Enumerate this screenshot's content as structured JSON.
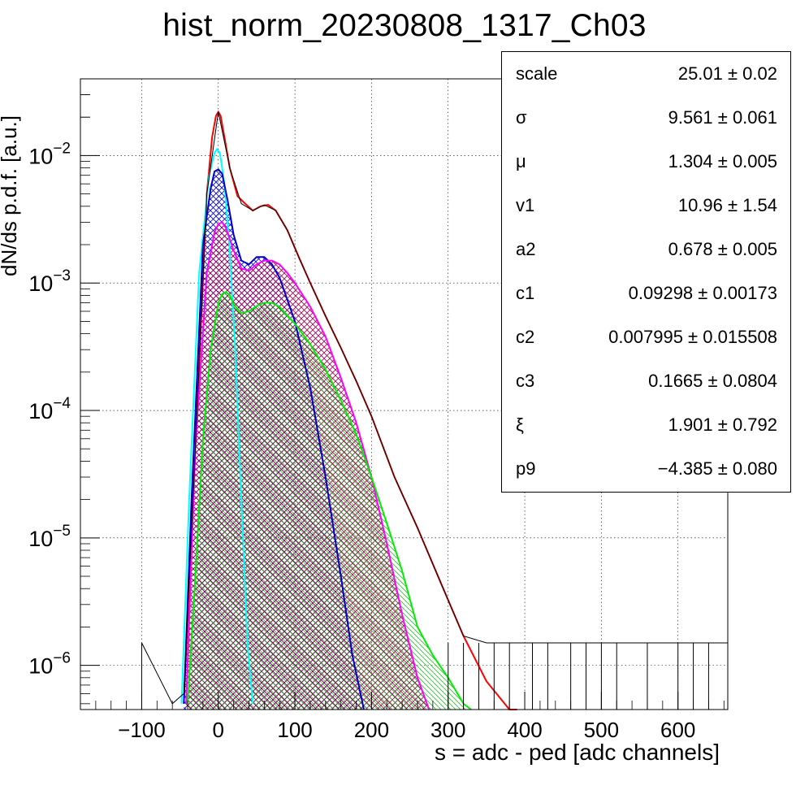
{
  "chart_data": {
    "type": "line",
    "title": "hist_norm_20230808_1317_Ch03",
    "xlabel": "s = adc - ped [adc channels]",
    "ylabel": "dN/ds p.d.f. [a.u.]",
    "xlim": [
      -180,
      665
    ],
    "ylim": [
      4.5e-07,
      0.04
    ],
    "yscale": "log",
    "grid": true,
    "legend": "none",
    "x_ticks": [
      "−100",
      "0",
      "100",
      "200",
      "300",
      "400",
      "500",
      "600"
    ],
    "x_tick_values": [
      -100,
      0,
      100,
      200,
      300,
      400,
      500,
      600
    ],
    "y_ticks": [
      {
        "base": "10",
        "exp": "−2",
        "value": 0.01
      },
      {
        "base": "10",
        "exp": "−3",
        "value": 0.001
      },
      {
        "base": "10",
        "exp": "−4",
        "value": 0.0001
      },
      {
        "base": "10",
        "exp": "−5",
        "value": 1e-05
      },
      {
        "base": "10",
        "exp": "−6",
        "value": 1e-06
      }
    ],
    "series": [
      {
        "color": "#ff0000",
        "fill": "none",
        "x": [
          -45,
          -30,
          -15,
          -8,
          -3,
          0,
          3,
          8,
          15,
          25,
          35,
          45,
          55,
          65,
          75,
          90,
          105,
          120,
          140,
          160,
          180,
          200,
          230,
          260,
          290,
          320,
          350,
          380,
          390
        ],
        "y": [
          5e-07,
          5e-05,
          0.005,
          0.014,
          0.0205,
          0.022,
          0.0205,
          0.014,
          0.008,
          0.0048,
          0.0042,
          0.0037,
          0.004,
          0.0041,
          0.0037,
          0.0026,
          0.0016,
          0.001,
          0.00055,
          0.00031,
          0.00017,
          9e-05,
          3e-05,
          1.2e-05,
          4.5e-06,
          1.7e-06,
          7.5e-07,
          4.5e-07,
          4e-07
        ]
      },
      {
        "color": "#00ffff",
        "fill": "none",
        "x": [
          -48,
          -38,
          -25,
          -12,
          -5,
          -2,
          2,
          8,
          15,
          22,
          30,
          38,
          45
        ],
        "y": [
          5e-07,
          2e-05,
          0.0012,
          0.007,
          0.0105,
          0.0112,
          0.0105,
          0.006,
          0.0018,
          0.0003,
          2e-05,
          1.5e-06,
          5e-07
        ]
      },
      {
        "color": "#0000cc",
        "fill": "#0000cc",
        "x": [
          -45,
          -35,
          -20,
          -10,
          -5,
          0,
          5,
          12,
          20,
          30,
          40,
          50,
          60,
          70,
          80,
          100,
          120,
          140,
          160,
          175,
          190
        ],
        "y": [
          5e-07,
          2e-05,
          0.002,
          0.0055,
          0.0075,
          0.0078,
          0.0072,
          0.0045,
          0.0024,
          0.0015,
          0.0014,
          0.0016,
          0.0016,
          0.0014,
          0.0011,
          0.0005,
          0.00015,
          3e-05,
          5e-06,
          1.2e-06,
          4e-07
        ]
      },
      {
        "color": "#ff00ff",
        "fill": "#9a0050",
        "x": [
          -42,
          -30,
          -15,
          -5,
          0,
          5,
          10,
          20,
          30,
          40,
          50,
          60,
          70,
          80,
          90,
          100,
          120,
          140,
          160,
          180,
          200,
          220,
          240,
          260,
          275
        ],
        "y": [
          5e-07,
          5e-05,
          0.0012,
          0.0025,
          0.0029,
          0.003,
          0.0027,
          0.0018,
          0.0013,
          0.00125,
          0.0014,
          0.0015,
          0.0015,
          0.0014,
          0.0012,
          0.001,
          0.00065,
          0.00038,
          0.00018,
          8e-05,
          3e-05,
          9e-06,
          2.5e-06,
          8e-07,
          4e-07
        ]
      },
      {
        "color": "#00ee00",
        "fill": "#00bb00",
        "x": [
          -40,
          -30,
          -20,
          -10,
          0,
          5,
          10,
          15,
          20,
          30,
          40,
          50,
          60,
          70,
          80,
          100,
          120,
          140,
          160,
          180,
          200,
          220,
          240,
          260,
          280,
          300,
          320,
          330
        ],
        "y": [
          5e-07,
          5e-06,
          6e-05,
          0.0003,
          0.0007,
          0.00082,
          0.00085,
          0.0008,
          0.00068,
          0.00058,
          0.0006,
          0.00066,
          0.0007,
          0.0007,
          0.00065,
          0.00048,
          0.00033,
          0.00021,
          0.00012,
          6.5e-05,
          3e-05,
          1.3e-05,
          5.5e-06,
          2e-06,
          1.2e-06,
          8e-07,
          5e-07,
          4e-07
        ]
      },
      {
        "color": "#000000",
        "fill": "none",
        "name": "",
        "x": [
          -100,
          -60,
          -45,
          -30,
          -15,
          0,
          15,
          30,
          45,
          60,
          75,
          90,
          105,
          120,
          140,
          160,
          180,
          200,
          230,
          260,
          290,
          320,
          350,
          380,
          420,
          470,
          520,
          580,
          640,
          665
        ],
        "y": [
          1.5e-06,
          5e-07,
          6e-07,
          5e-05,
          0.005,
          0.022,
          0.008,
          0.0042,
          0.0037,
          0.0041,
          0.0037,
          0.0026,
          0.0016,
          0.001,
          0.00055,
          0.00031,
          0.00017,
          9e-05,
          3e-05,
          1.2e-05,
          4.5e-06,
          1.7e-06,
          1.5e-06,
          1.5e-06,
          1.5e-06,
          1.5e-06,
          1.5e-06,
          1.5e-06,
          1.5e-06,
          1.5e-06
        ]
      }
    ]
  },
  "stats": [
    {
      "name": "scale",
      "value": "25.01",
      "err": "0.02"
    },
    {
      "name": "σ",
      "value": "9.561",
      "err": "0.061"
    },
    {
      "name": "μ",
      "value": "1.304",
      "err": "0.005"
    },
    {
      "name": "v1",
      "value": "10.96",
      "err": "1.54"
    },
    {
      "name": "a2",
      "value": "0.678",
      "err": "0.005"
    },
    {
      "name": "c1",
      "value": "0.09298",
      "err": "0.00173"
    },
    {
      "name": "c2",
      "value": "0.007995",
      "err": "0.015508"
    },
    {
      "name": "c3",
      "value": "0.1665",
      "err": "0.0804"
    },
    {
      "name": "ξ",
      "value": "1.901",
      "err": "0.792"
    },
    {
      "name": "p9",
      "value": "−4.385",
      "err": "0.080"
    }
  ],
  "pm_symbol": "±"
}
